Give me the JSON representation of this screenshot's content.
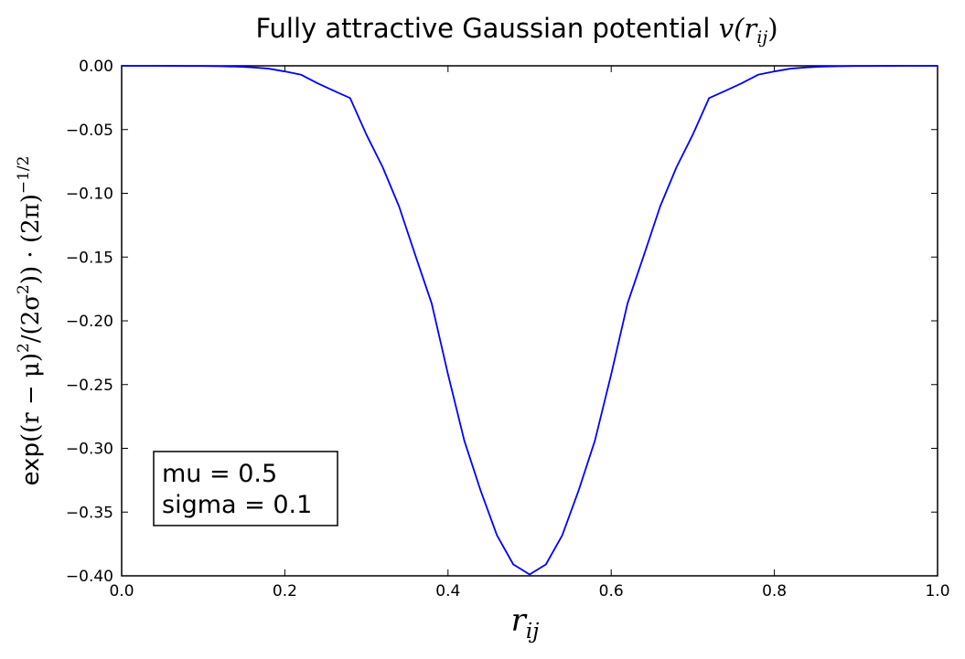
{
  "chart_data": {
    "type": "line",
    "title": "Fully attractive Gaussian potential v(r_ij)",
    "title_parts": {
      "text": "Fully attractive Gaussian potential ",
      "math": "v(r",
      "sub": "ij",
      "close": ")"
    },
    "xlabel": "r_ij",
    "xlabel_parts": {
      "math": "r",
      "sub": "ij"
    },
    "ylabel": "exp((r − μ)²/(2σ²))·(2π)^−1/2",
    "ylabel_parts": {
      "fn": "exp",
      "mid": "((r − μ)",
      "sup1": "2",
      "mid2": "/(2σ",
      "sup2": "2",
      "mid3": ")) · (2π)",
      "sup3": "−1/2"
    },
    "xlim": [
      0.0,
      1.0
    ],
    "ylim": [
      -0.4,
      0.0
    ],
    "xticks": [
      0.0,
      0.2,
      0.4,
      0.6,
      0.8,
      1.0
    ],
    "xtick_labels": [
      "0.0",
      "0.2",
      "0.4",
      "0.6",
      "0.8",
      "1.0"
    ],
    "yticks": [
      0.0,
      -0.05,
      -0.1,
      -0.15,
      -0.2,
      -0.25,
      -0.3,
      -0.35,
      -0.4
    ],
    "ytick_labels": [
      "0.00",
      "−0.05",
      "−0.10",
      "−0.15",
      "−0.20",
      "−0.25",
      "−0.30",
      "−0.35",
      "−0.40"
    ],
    "grid": false,
    "series": [
      {
        "color": "#0000ff",
        "function": "-exp(-(x-0.5)^2/(2*0.1^2)) * (2*pi)^-0.5",
        "x": [
          0.0,
          0.02,
          0.04,
          0.06,
          0.08,
          0.1,
          0.12,
          0.14,
          0.16,
          0.18,
          0.2,
          0.22,
          0.24,
          0.26,
          0.28,
          0.3,
          0.32,
          0.34,
          0.36,
          0.38,
          0.4,
          0.42,
          0.44,
          0.46,
          0.48,
          0.5,
          0.52,
          0.54,
          0.56,
          0.58,
          0.6,
          0.62,
          0.64,
          0.66,
          0.68,
          0.7,
          0.72,
          0.74,
          0.76,
          0.78,
          0.8,
          0.82,
          0.84,
          0.86,
          0.88,
          0.9,
          0.92,
          0.94,
          0.96,
          0.98,
          1.0
        ],
        "y": [
          -1.5e-06,
          -9.8e-06,
          -1.03e-05,
          -5.21e-05,
          -0.0001245,
          -0.0001339,
          -0.0003004,
          -0.0006271,
          -0.0012181,
          -0.0022015,
          -0.0044318,
          -0.0070076,
          -0.0136335,
          -0.0196129,
          -0.0252803,
          -0.053991,
          -0.0795487,
          -0.1103186,
          -0.1487275,
          -0.1864425,
          -0.2419707,
          -0.2940454,
          -0.3332246,
          -0.3682701,
          -0.3910427,
          -0.3989423,
          -0.3910427,
          -0.3682701,
          -0.3332246,
          -0.2940454,
          -0.2419707,
          -0.1864425,
          -0.1487275,
          -0.1103186,
          -0.0795487,
          -0.053991,
          -0.0252803,
          -0.0196129,
          -0.0136335,
          -0.0070076,
          -0.0044318,
          -0.0022015,
          -0.0012181,
          -0.0006271,
          -0.0003004,
          -0.0001339,
          -0.0001245,
          -5.21e-05,
          -1.03e-05,
          -9.8e-06,
          -1.5e-06
        ]
      }
    ],
    "annotation": {
      "lines": [
        "mu = 0.5",
        "sigma = 0.1"
      ],
      "placement": "lower-left"
    }
  }
}
